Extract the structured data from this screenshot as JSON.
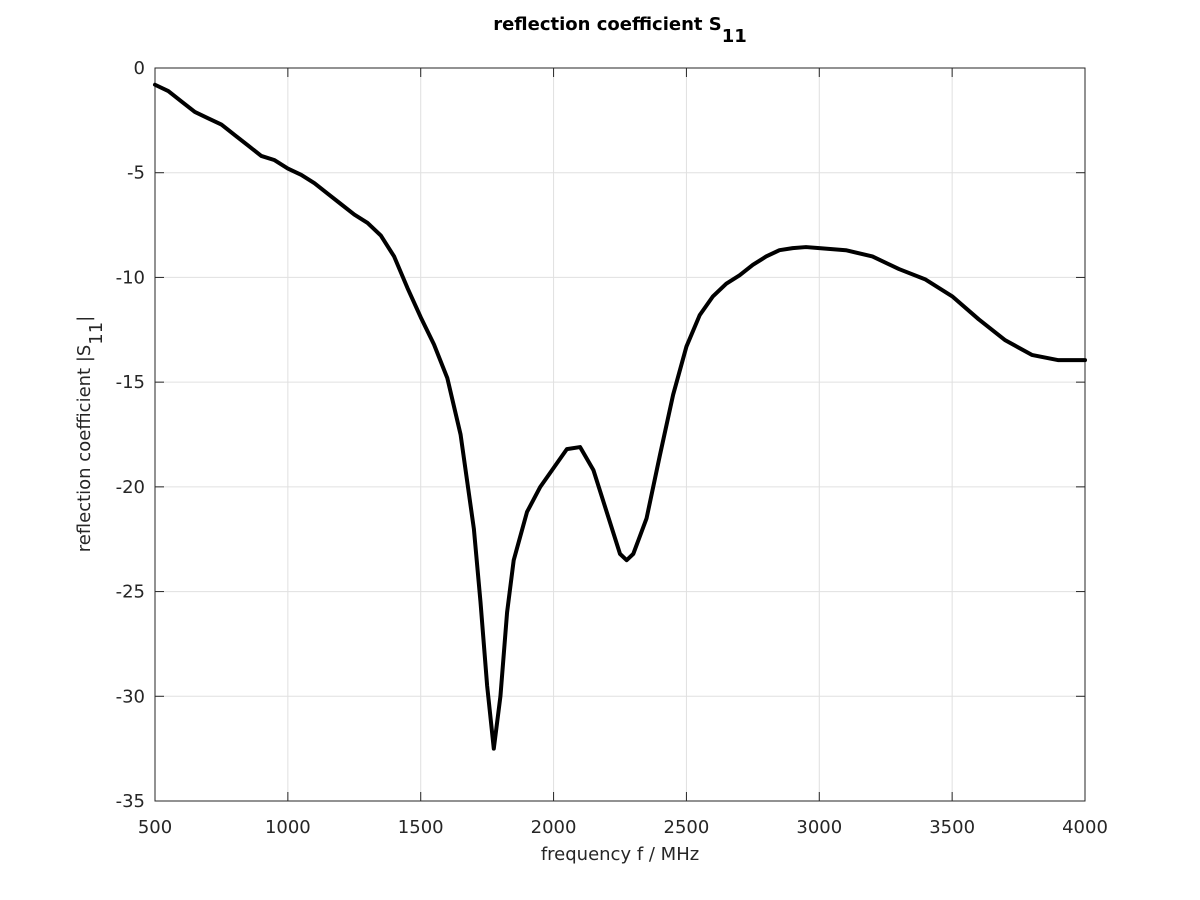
{
  "chart_data": {
    "type": "line",
    "title": {
      "text": "reflection coefficient S",
      "subscript": "11"
    },
    "xlabel": "frequency f / MHz",
    "ylabel": {
      "text": "reflection coefficient |S",
      "subscript": "11",
      "suffix": "|"
    },
    "x": [
      500,
      550,
      600,
      650,
      700,
      750,
      800,
      850,
      900,
      950,
      1000,
      1050,
      1100,
      1150,
      1200,
      1250,
      1300,
      1350,
      1400,
      1450,
      1500,
      1550,
      1600,
      1650,
      1700,
      1725,
      1750,
      1775,
      1800,
      1825,
      1850,
      1900,
      1950,
      2000,
      2050,
      2100,
      2150,
      2200,
      2250,
      2275,
      2300,
      2350,
      2400,
      2450,
      2500,
      2550,
      2600,
      2650,
      2700,
      2750,
      2800,
      2850,
      2900,
      2950,
      3000,
      3100,
      3200,
      3300,
      3400,
      3500,
      3600,
      3700,
      3800,
      3900,
      4000
    ],
    "series": [
      {
        "color": "#000000",
        "values": [
          -0.8,
          -1.1,
          -1.6,
          -2.1,
          -2.4,
          -2.7,
          -3.2,
          -3.7,
          -4.2,
          -4.4,
          -4.8,
          -5.1,
          -5.5,
          -6.0,
          -6.5,
          -7.0,
          -7.4,
          -8.0,
          -9.0,
          -10.5,
          -11.9,
          -13.2,
          -14.8,
          -17.5,
          -22,
          -25.5,
          -29.5,
          -32.5,
          -30,
          -26,
          -23.5,
          -21.2,
          -20,
          -19.1,
          -18.2,
          -18.1,
          -19.2,
          -21.2,
          -23.2,
          -23.5,
          -23.2,
          -21.5,
          -18.5,
          -15.6,
          -13.3,
          -11.8,
          -10.9,
          -10.3,
          -9.9,
          -9.4,
          -9.0,
          -8.7,
          -8.6,
          -8.55,
          -8.6,
          -8.7,
          -9.0,
          -9.6,
          -10.1,
          -10.9,
          -12.0,
          -13.0,
          -13.7,
          -13.95,
          -13.95
        ]
      }
    ],
    "xlim": [
      500,
      4000
    ],
    "xticks": [
      500,
      1000,
      1500,
      2000,
      2500,
      3000,
      3500,
      4000
    ],
    "ylim": [
      -35,
      0
    ],
    "yticks": [
      -35,
      -30,
      -25,
      -20,
      -15,
      -10,
      -5,
      0
    ],
    "grid": true
  }
}
